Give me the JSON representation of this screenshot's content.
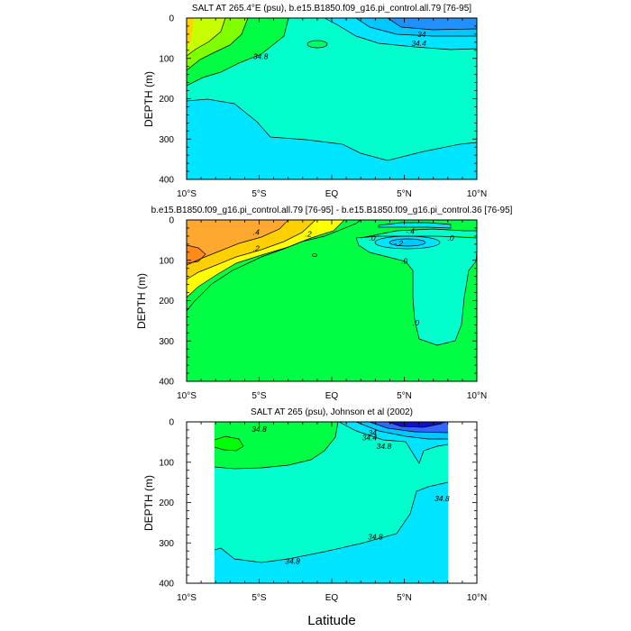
{
  "chart_data": [
    {
      "type": "contour",
      "title": "SALT AT 265.4°E (psu), b.e15.B1850.f09_g16.pi_control.all.79 [76-95]",
      "ylabel": "DEPTH (m)",
      "xlabel": "",
      "xlim": [
        -10,
        10
      ],
      "ylim": [
        400,
        0
      ],
      "x_ticks": [
        "10°S",
        "5°S",
        "EQ",
        "5°N",
        "10°N"
      ],
      "y_ticks": [
        "0",
        "100",
        "200",
        "300",
        "400"
      ],
      "contour_labels": [
        {
          "text": "34",
          "lat": 6.2,
          "depth": 40
        },
        {
          "text": "34.4",
          "lat": 6.0,
          "depth": 63
        },
        {
          "text": "34.8",
          "lat": -4.9,
          "depth": 95
        }
      ],
      "colors": {
        "freshest": "#1e90ff",
        "fresh": "#00e5ff",
        "mid": "#00ffcc",
        "salty": "#00ff44",
        "saltier": "#8cff00",
        "saltiest": "#ffd700"
      }
    },
    {
      "type": "contour",
      "title": "b.e15.B1850.f09_g16.pi_control.all.79 [76-95] - b.e15.B1850.f09_g16.pi_control.36 [76-95]",
      "ylabel": "DEPTH (m)",
      "xlabel": "",
      "xlim": [
        -10,
        10
      ],
      "ylim": [
        400,
        0
      ],
      "x_ticks": [
        "10°S",
        "5°S",
        "EQ",
        "5°N",
        "10°N"
      ],
      "y_ticks": [
        "0",
        "100",
        "200",
        "300",
        "400"
      ],
      "contour_labels": [
        {
          "text": ".4",
          "lat": -5.2,
          "depth": 30
        },
        {
          "text": ".2",
          "lat": -5.2,
          "depth": 70
        },
        {
          "text": ".2",
          "lat": -1.6,
          "depth": 35
        },
        {
          "text": ".0",
          "lat": 2.8,
          "depth": 45
        },
        {
          "text": "-.4",
          "lat": 5.4,
          "depth": 28
        },
        {
          "text": "-.2",
          "lat": 4.6,
          "depth": 58
        },
        {
          "text": ".0",
          "lat": 8.2,
          "depth": 45
        },
        {
          "text": ".0",
          "lat": 5.0,
          "depth": 102
        },
        {
          "text": ".0",
          "lat": 5.8,
          "depth": 255
        }
      ],
      "colors": {
        "pos_high": "#ffa830",
        "pos_mid": "#ffff00",
        "zero_pos": "#00ff44",
        "neg": "#00ffcc"
      }
    },
    {
      "type": "contour",
      "title": "SALT AT 265 (psu), Johnson et al (2002)",
      "ylabel": "DEPTH (m)",
      "xlabel": "Latitude",
      "xlim": [
        -10,
        10
      ],
      "ylim": [
        400,
        0
      ],
      "x_ticks": [
        "10°S",
        "5°S",
        "EQ",
        "5°N",
        "10°N"
      ],
      "y_ticks": [
        "0",
        "100",
        "200",
        "300",
        "400"
      ],
      "contour_labels": [
        {
          "text": "34.8",
          "lat": -5.0,
          "depth": 18
        },
        {
          "text": "34",
          "lat": 2.8,
          "depth": 27
        },
        {
          "text": "34.4",
          "lat": 2.6,
          "depth": 39
        },
        {
          "text": "34.8",
          "lat": 3.6,
          "depth": 60
        },
        {
          "text": "34.8",
          "lat": 7.6,
          "depth": 190
        },
        {
          "text": "34.8",
          "lat": 3.0,
          "depth": 285
        },
        {
          "text": "34.8",
          "lat": -2.7,
          "depth": 345
        }
      ],
      "colors": {
        "deep_blue": "#1010cc",
        "blue": "#3366ff",
        "fresh": "#00e5ff",
        "mid": "#00ffcc",
        "salty": "#00ff44"
      }
    }
  ]
}
